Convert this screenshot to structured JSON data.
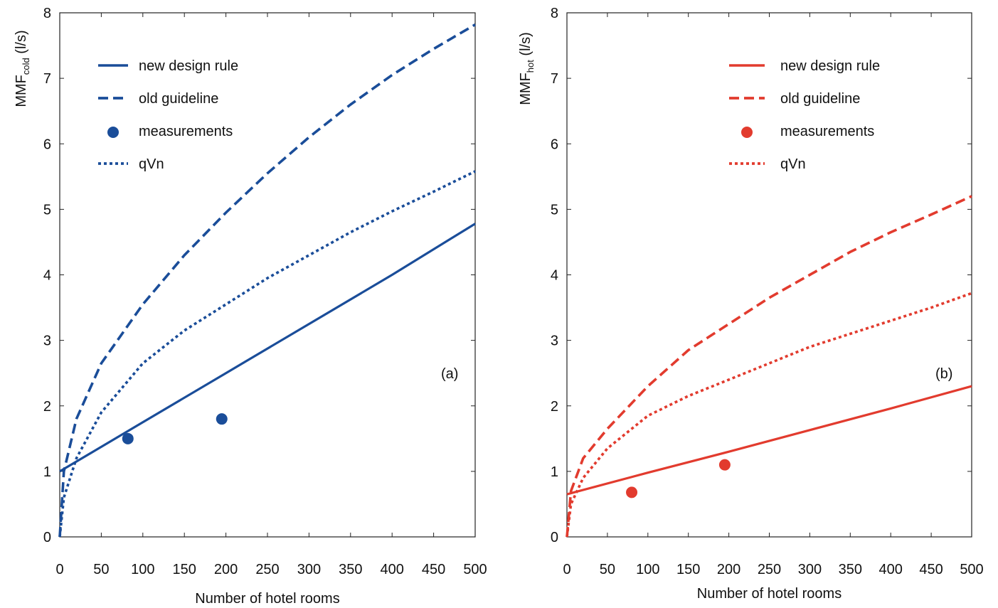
{
  "chart_data": [
    {
      "type": "line",
      "panel_label": "(a)",
      "xlabel": "Number of hotel rooms",
      "ylabel_main": "MMF",
      "ylabel_sub": "cold",
      "ylabel_unit": "(l/s)",
      "xlim": [
        0,
        500
      ],
      "ylim": [
        0,
        8
      ],
      "xticks": [
        0,
        50,
        100,
        150,
        200,
        250,
        300,
        350,
        400,
        450,
        500
      ],
      "yticks": [
        0,
        1,
        2,
        3,
        4,
        5,
        6,
        7,
        8
      ],
      "color": "#1a4d99",
      "legend_position": "top-left",
      "series": [
        {
          "name": "new design rule",
          "style": "solid",
          "x": [
            0,
            100,
            200,
            300,
            400,
            500
          ],
          "y": [
            1.0,
            1.75,
            2.5,
            3.25,
            4.0,
            4.78
          ]
        },
        {
          "name": "old guideline",
          "style": "dashed",
          "x": [
            0,
            5,
            20,
            50,
            100,
            150,
            200,
            250,
            300,
            350,
            400,
            450,
            500
          ],
          "y": [
            0.0,
            1.0,
            1.8,
            2.65,
            3.55,
            4.3,
            4.95,
            5.55,
            6.1,
            6.6,
            7.05,
            7.45,
            7.82
          ]
        },
        {
          "name": "qVn",
          "style": "dotted",
          "x": [
            0,
            5,
            20,
            50,
            100,
            150,
            200,
            250,
            300,
            350,
            400,
            450,
            500
          ],
          "y": [
            0.0,
            0.6,
            1.2,
            1.9,
            2.65,
            3.15,
            3.55,
            3.95,
            4.3,
            4.65,
            4.97,
            5.27,
            5.58
          ]
        },
        {
          "name": "measurements",
          "style": "marker",
          "x": [
            82,
            195
          ],
          "y": [
            1.5,
            1.8
          ]
        }
      ]
    },
    {
      "type": "line",
      "panel_label": "(b)",
      "xlabel": "Number of hotel rooms",
      "ylabel_main": "MMF",
      "ylabel_sub": "hot",
      "ylabel_unit": "(l/s)",
      "xlim": [
        0,
        500
      ],
      "ylim": [
        0,
        8
      ],
      "xticks": [
        0,
        50,
        100,
        150,
        200,
        250,
        300,
        350,
        400,
        450,
        500
      ],
      "yticks": [
        0,
        1,
        2,
        3,
        4,
        5,
        6,
        7,
        8
      ],
      "color": "#e23b2e",
      "legend_position": "top-right",
      "series": [
        {
          "name": "new design rule",
          "style": "solid",
          "x": [
            0,
            100,
            200,
            300,
            400,
            500
          ],
          "y": [
            0.65,
            0.98,
            1.3,
            1.63,
            1.96,
            2.3
          ]
        },
        {
          "name": "old guideline",
          "style": "dashed",
          "x": [
            0,
            5,
            20,
            50,
            100,
            150,
            200,
            250,
            300,
            350,
            400,
            450,
            500
          ],
          "y": [
            0.0,
            0.7,
            1.2,
            1.65,
            2.3,
            2.85,
            3.25,
            3.65,
            4.0,
            4.35,
            4.65,
            4.92,
            5.2
          ]
        },
        {
          "name": "qVn",
          "style": "dotted",
          "x": [
            0,
            5,
            20,
            50,
            100,
            150,
            200,
            250,
            300,
            350,
            400,
            450,
            500
          ],
          "y": [
            0.0,
            0.5,
            0.9,
            1.35,
            1.85,
            2.15,
            2.4,
            2.65,
            2.9,
            3.1,
            3.3,
            3.5,
            3.72
          ]
        },
        {
          "name": "measurements",
          "style": "marker",
          "x": [
            80,
            195
          ],
          "y": [
            0.68,
            1.1
          ]
        }
      ]
    }
  ]
}
